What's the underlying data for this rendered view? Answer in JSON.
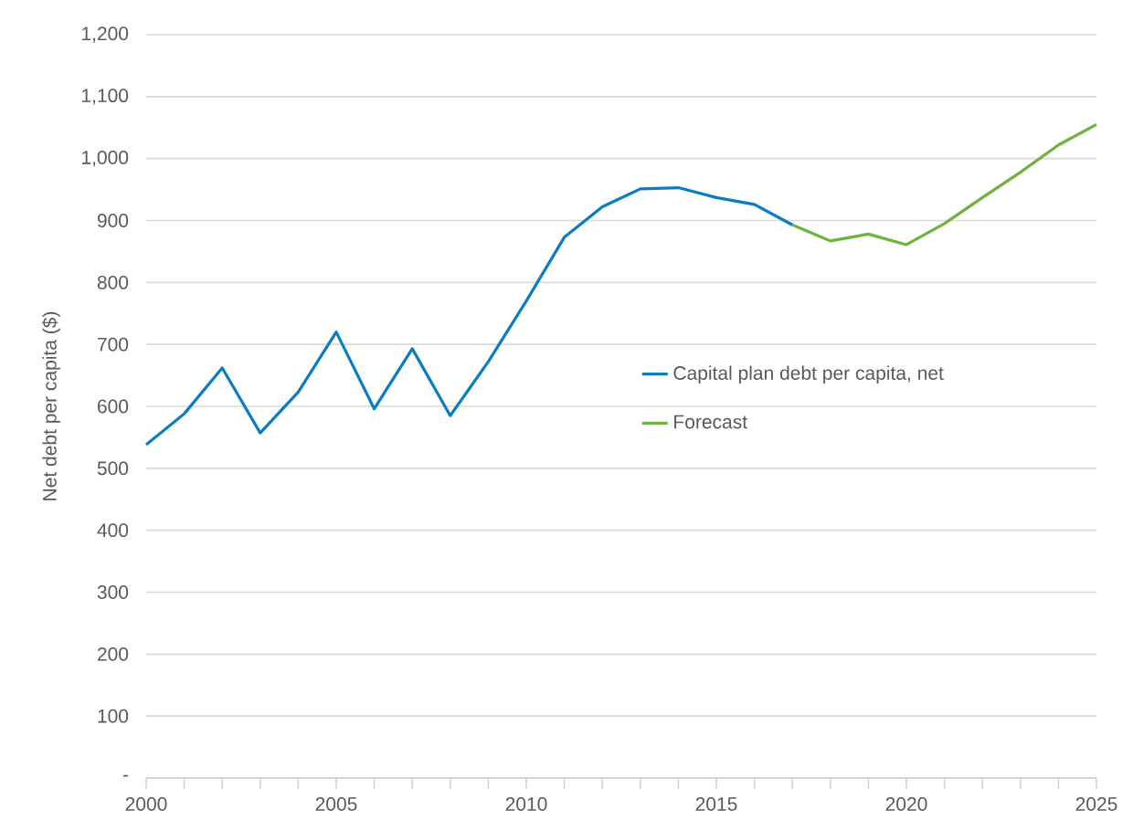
{
  "chart_data": {
    "type": "line",
    "ylabel": "Net debt  per capita ($)",
    "xlim": [
      2000,
      2025
    ],
    "xticks": [
      2000,
      2005,
      2010,
      2015,
      2020,
      2025
    ],
    "ylim": [
      0,
      1200
    ],
    "yticks": [
      {
        "value": 0,
        "label": "-"
      },
      100,
      200,
      300,
      400,
      500,
      600,
      700,
      800,
      900,
      {
        "value": 1000,
        "label": "1,000"
      },
      {
        "value": 1100,
        "label": "1,100"
      },
      {
        "value": 1200,
        "label": "1,200"
      }
    ],
    "grid": "y",
    "legend": "right",
    "marker": "none",
    "line_style": "solid",
    "series": [
      {
        "name": "Capital plan debt per capita, net",
        "color": "#0a7cc1",
        "x": [
          2000,
          2001,
          2002,
          2003,
          2004,
          2005,
          2006,
          2007,
          2008,
          2009,
          2010,
          2011,
          2012,
          2013,
          2014,
          2015,
          2016,
          2017
        ],
        "values": [
          538,
          588,
          662,
          557,
          623,
          720,
          596,
          693,
          585,
          672,
          770,
          873,
          922,
          951,
          953,
          937,
          926,
          893
        ]
      },
      {
        "name": "Forecast",
        "color": "#6db33f",
        "x": [
          2017,
          2018,
          2019,
          2020,
          2021,
          2022,
          2023,
          2024,
          2025
        ],
        "values": [
          893,
          867,
          878,
          861,
          895,
          937,
          978,
          1022,
          1055
        ]
      }
    ]
  }
}
